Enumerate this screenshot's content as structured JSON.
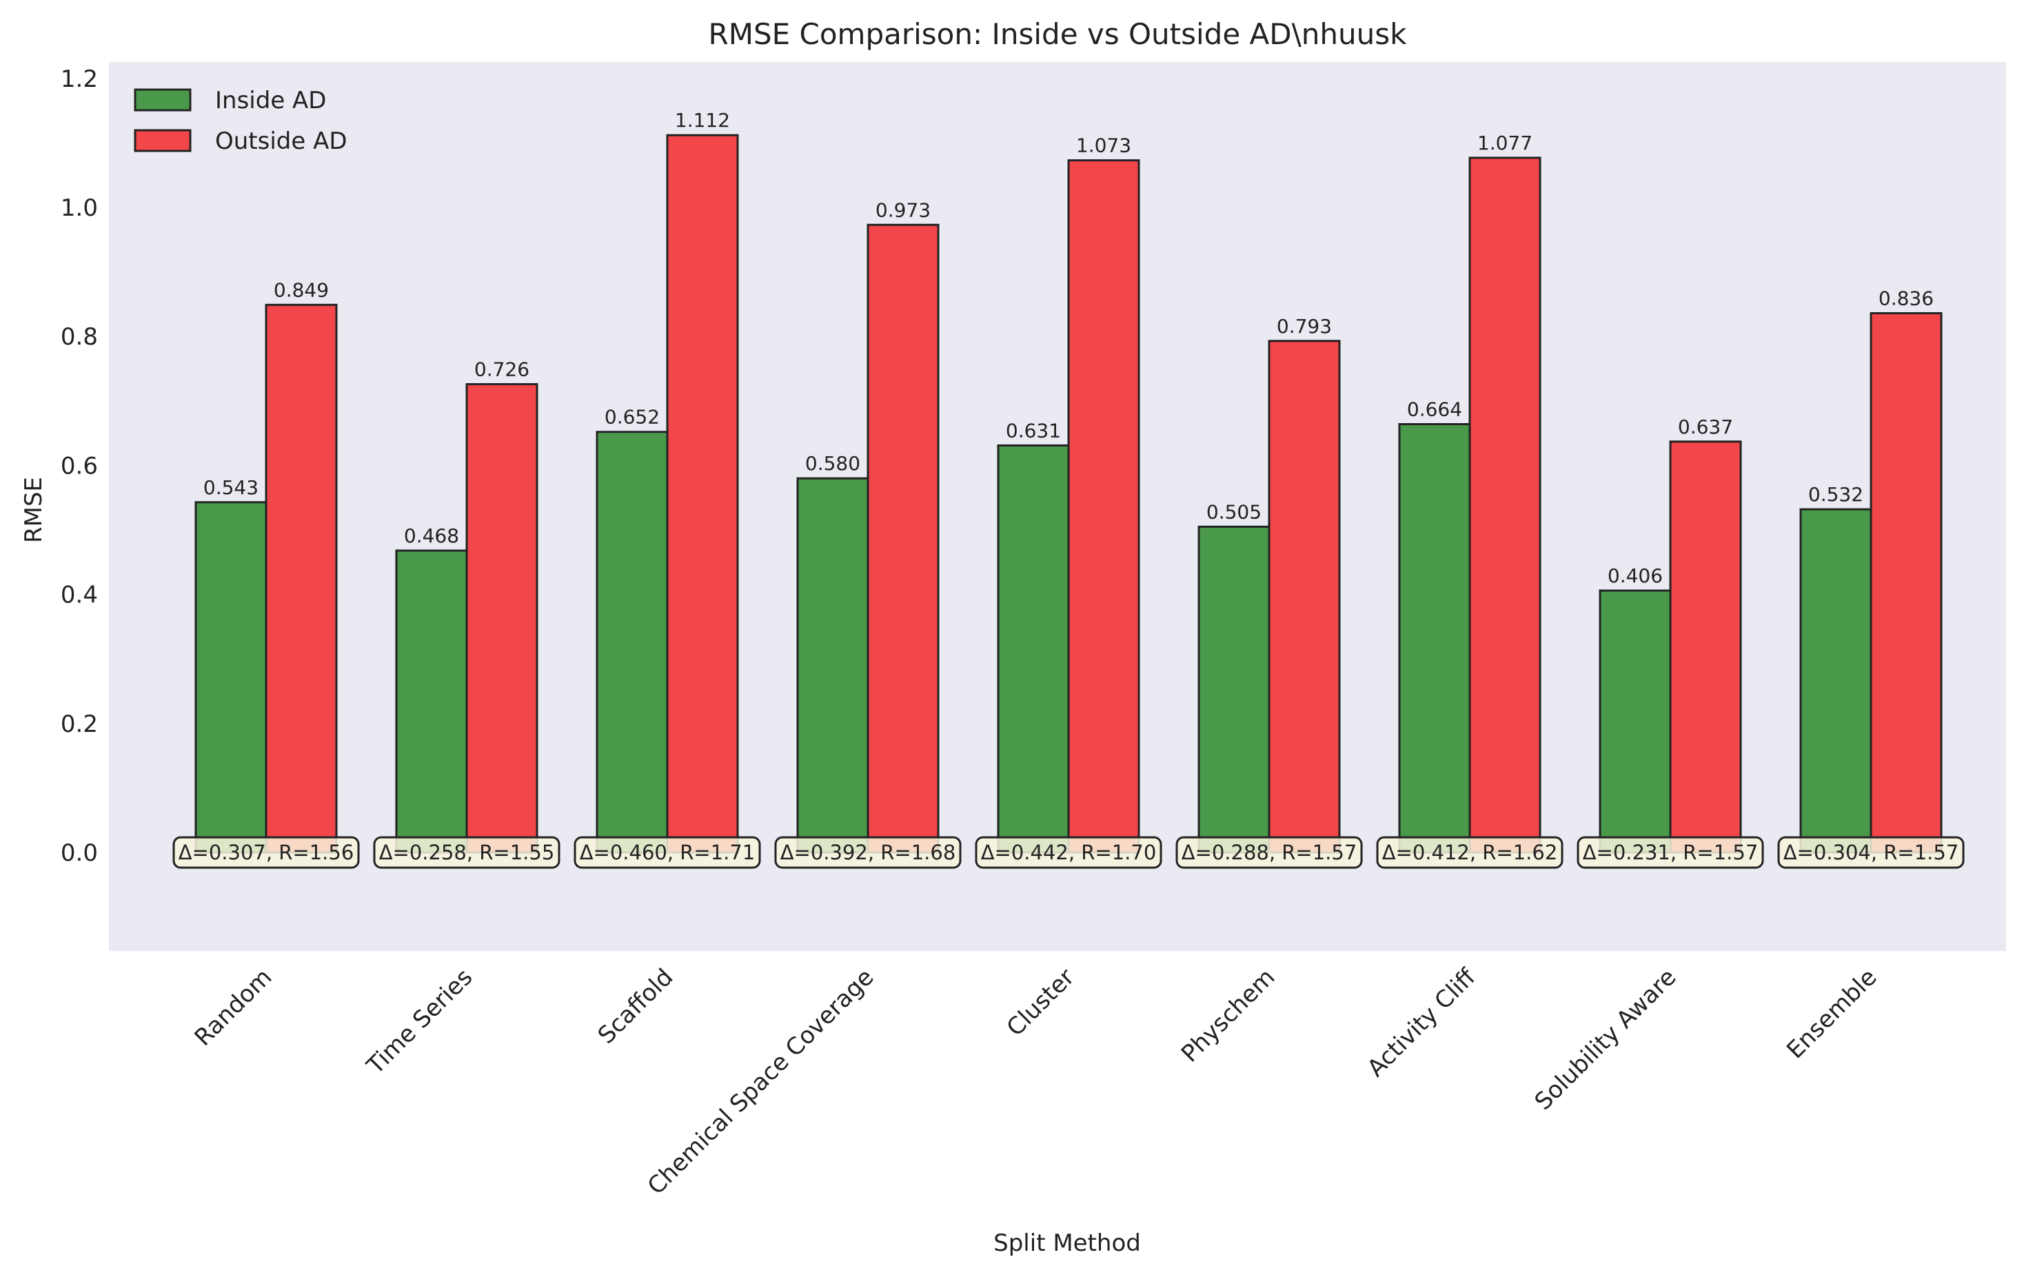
{
  "chart_data": {
    "type": "bar",
    "title": "RMSE Comparison: Inside vs Outside AD\\nhuusk",
    "xlabel": "Split Method",
    "ylabel": "RMSE",
    "ylim": [
      -0.15,
      1.22
    ],
    "yticks": [
      "0.0",
      "0.2",
      "0.4",
      "0.6",
      "0.8",
      "1.0",
      "1.2"
    ],
    "grid": false,
    "legend_position": "top-left",
    "categories": [
      "Random",
      "Time Series",
      "Scaffold",
      "Chemical Space Coverage",
      "Cluster",
      "Physchem",
      "Activity Cliff",
      "Solubility Aware",
      "Ensemble"
    ],
    "series": [
      {
        "name": "Inside AD",
        "color": "#2e8b2e",
        "values": [
          0.543,
          0.468,
          0.652,
          0.58,
          0.631,
          0.505,
          0.664,
          0.406,
          0.532
        ],
        "value_labels": [
          "0.543",
          "0.468",
          "0.652",
          "0.580",
          "0.631",
          "0.505",
          "0.664",
          "0.406",
          "0.532"
        ]
      },
      {
        "name": "Outside AD",
        "color": "#f5292e",
        "values": [
          0.849,
          0.726,
          1.112,
          0.973,
          1.073,
          0.793,
          1.077,
          0.637,
          0.836
        ],
        "value_labels": [
          "0.849",
          "0.726",
          "1.112",
          "0.973",
          "1.073",
          "0.793",
          "1.077",
          "0.637",
          "0.836"
        ]
      }
    ],
    "annotations": [
      "Δ=0.307, R=1.56",
      "Δ=0.258, R=1.55",
      "Δ=0.460, R=1.71",
      "Δ=0.392, R=1.68",
      "Δ=0.442, R=1.70",
      "Δ=0.288, R=1.57",
      "Δ=0.412, R=1.62",
      "Δ=0.231, R=1.57",
      "Δ=0.304, R=1.57"
    ],
    "plot_background": "#eaeaf2",
    "annotation_box_color": "#f7f3dc"
  }
}
